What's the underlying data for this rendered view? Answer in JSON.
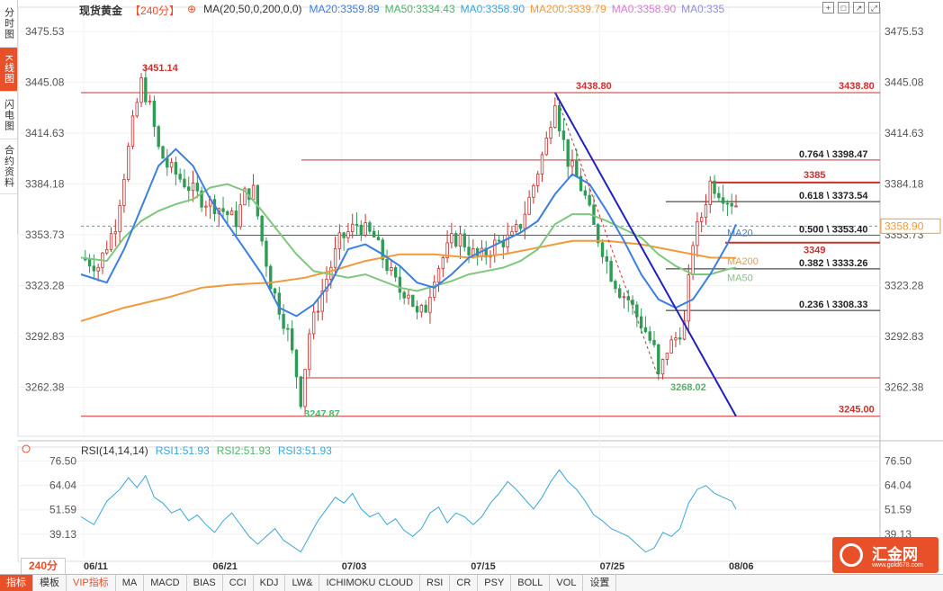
{
  "side_tabs": [
    "分时图",
    "K线图",
    "闪电图",
    "合约资料"
  ],
  "header": {
    "name": "现货黄金",
    "period": "【240分】",
    "ma_label": "MA(20,50,0,200,0,0)",
    "ma_values": [
      {
        "text": "MA20:3359.89",
        "color": "#3b7fe0"
      },
      {
        "text": "MA50:3334.43",
        "color": "#4fb36a"
      },
      {
        "text": "MA0:3358.90",
        "color": "#3aa5d8"
      },
      {
        "text": "MA200:3339.79",
        "color": "#f09a3a"
      },
      {
        "text": "MA0:3358.90",
        "color": "#d77ad6"
      },
      {
        "text": "MA0:335",
        "color": "#8e8ee0"
      }
    ]
  },
  "rsi_header": {
    "label": "RSI(14,14,14)",
    "rsi1": "RSI1:51.93",
    "rsi2": "RSI2:51.93",
    "rsi3": "RSI3:51.93"
  },
  "colors": {
    "up": "#c9312f",
    "down": "#2e9c55",
    "ma20": "#3b7fe0",
    "ma50": "#7fc77f",
    "ma200": "#f09a3a",
    "rsi": "#3aa5d8",
    "trend": "#1f1fbf",
    "level": "#c9312f"
  },
  "chart_data": {
    "type": "candlestick",
    "title": "现货黄金",
    "price_axis_ticks": [
      3475.53,
      3445.08,
      3414.63,
      3384.18,
      3353.73,
      3323.28,
      3292.83,
      3262.38
    ],
    "price_range": [
      3233.0,
      3490.0
    ],
    "date_ticks": [
      "06/11",
      "06/21",
      "07/03",
      "07/15",
      "07/25",
      "08/06"
    ],
    "current_price": "3358.90",
    "annotations": [
      {
        "text": "3451.14",
        "kind": "high"
      },
      {
        "text": "3438.80",
        "kind": "high"
      },
      {
        "text": "3247.87",
        "kind": "low"
      },
      {
        "text": "3268.02",
        "kind": "low"
      },
      {
        "text": "3438.80",
        "kind": "level"
      },
      {
        "text": "3245.00",
        "kind": "level"
      },
      {
        "text": "3385",
        "kind": "level"
      },
      {
        "text": "3349",
        "kind": "level"
      }
    ],
    "fibonacci": [
      {
        "label": "0.764 \\ 3398.47",
        "value": 3398.47
      },
      {
        "label": "0.618 \\ 3373.54",
        "value": 3373.54
      },
      {
        "label": "0.500 \\ 3353.40",
        "value": 3353.4
      },
      {
        "label": "0.382 \\ 3333.26",
        "value": 3333.26
      },
      {
        "label": "0.236 \\ 3308.33",
        "value": 3308.33
      }
    ],
    "ma_tags": [
      "MA20",
      "MA200",
      "MA50"
    ],
    "close_points": [
      [
        0,
        3340
      ],
      [
        4,
        3335
      ],
      [
        8,
        3360
      ],
      [
        12,
        3420
      ],
      [
        14,
        3445
      ],
      [
        16,
        3430
      ],
      [
        18,
        3405
      ],
      [
        20,
        3395
      ],
      [
        24,
        3385
      ],
      [
        28,
        3375
      ],
      [
        32,
        3370
      ],
      [
        36,
        3362
      ],
      [
        38,
        3378
      ],
      [
        40,
        3380
      ],
      [
        42,
        3350
      ],
      [
        44,
        3325
      ],
      [
        46,
        3310
      ],
      [
        48,
        3295
      ],
      [
        50,
        3270
      ],
      [
        51,
        3255
      ],
      [
        53,
        3295
      ],
      [
        56,
        3320
      ],
      [
        60,
        3350
      ],
      [
        64,
        3360
      ],
      [
        68,
        3352
      ],
      [
        70,
        3340
      ],
      [
        72,
        3330
      ],
      [
        74,
        3320
      ],
      [
        76,
        3320
      ],
      [
        78,
        3305
      ],
      [
        80,
        3310
      ],
      [
        82,
        3330
      ],
      [
        84,
        3340
      ],
      [
        86,
        3350
      ],
      [
        88,
        3352
      ],
      [
        90,
        3345
      ],
      [
        92,
        3340
      ],
      [
        94,
        3342
      ],
      [
        96,
        3348
      ],
      [
        98,
        3350
      ],
      [
        100,
        3352
      ],
      [
        102,
        3360
      ],
      [
        104,
        3375
      ],
      [
        106,
        3392
      ],
      [
        108,
        3410
      ],
      [
        110,
        3436
      ],
      [
        111,
        3420
      ],
      [
        113,
        3398
      ],
      [
        115,
        3388
      ],
      [
        117,
        3376
      ],
      [
        119,
        3358
      ],
      [
        121,
        3345
      ],
      [
        123,
        3330
      ],
      [
        125,
        3320
      ],
      [
        127,
        3315
      ],
      [
        129,
        3305
      ],
      [
        131,
        3296
      ],
      [
        133,
        3285
      ],
      [
        134,
        3268
      ],
      [
        136,
        3285
      ],
      [
        138,
        3292
      ],
      [
        140,
        3300
      ],
      [
        142,
        3350
      ],
      [
        144,
        3365
      ],
      [
        146,
        3385
      ],
      [
        148,
        3380
      ],
      [
        150,
        3375
      ],
      [
        152,
        3372
      ]
    ],
    "ma20": [
      [
        0,
        3330
      ],
      [
        6,
        3325
      ],
      [
        10,
        3345
      ],
      [
        14,
        3370
      ],
      [
        18,
        3395
      ],
      [
        22,
        3405
      ],
      [
        26,
        3395
      ],
      [
        30,
        3375
      ],
      [
        34,
        3360
      ],
      [
        38,
        3345
      ],
      [
        42,
        3330
      ],
      [
        46,
        3310
      ],
      [
        50,
        3305
      ],
      [
        54,
        3312
      ],
      [
        58,
        3325
      ],
      [
        62,
        3345
      ],
      [
        66,
        3348
      ],
      [
        70,
        3342
      ],
      [
        74,
        3335
      ],
      [
        78,
        3325
      ],
      [
        82,
        3322
      ],
      [
        86,
        3330
      ],
      [
        90,
        3340
      ],
      [
        94,
        3345
      ],
      [
        98,
        3350
      ],
      [
        102,
        3355
      ],
      [
        106,
        3362
      ],
      [
        110,
        3378
      ],
      [
        114,
        3390
      ],
      [
        118,
        3384
      ],
      [
        122,
        3368
      ],
      [
        126,
        3350
      ],
      [
        130,
        3330
      ],
      [
        134,
        3315
      ],
      [
        138,
        3310
      ],
      [
        142,
        3315
      ],
      [
        146,
        3330
      ],
      [
        150,
        3348
      ],
      [
        152,
        3360
      ]
    ],
    "ma50": [
      [
        0,
        3340
      ],
      [
        6,
        3338
      ],
      [
        10,
        3352
      ],
      [
        14,
        3362
      ],
      [
        18,
        3368
      ],
      [
        22,
        3372
      ],
      [
        26,
        3375
      ],
      [
        30,
        3382
      ],
      [
        34,
        3384
      ],
      [
        38,
        3380
      ],
      [
        42,
        3368
      ],
      [
        46,
        3355
      ],
      [
        50,
        3342
      ],
      [
        54,
        3332
      ],
      [
        58,
        3330
      ],
      [
        62,
        3328
      ],
      [
        66,
        3330
      ],
      [
        70,
        3326
      ],
      [
        74,
        3322
      ],
      [
        78,
        3320
      ],
      [
        82,
        3323
      ],
      [
        86,
        3326
      ],
      [
        90,
        3330
      ],
      [
        94,
        3332
      ],
      [
        98,
        3334
      ],
      [
        102,
        3338
      ],
      [
        106,
        3345
      ],
      [
        110,
        3360
      ],
      [
        114,
        3366
      ],
      [
        118,
        3366
      ],
      [
        122,
        3362
      ],
      [
        126,
        3357
      ],
      [
        130,
        3352
      ],
      [
        134,
        3342
      ],
      [
        138,
        3335
      ],
      [
        142,
        3330
      ],
      [
        146,
        3330
      ],
      [
        150,
        3333
      ],
      [
        152,
        3334
      ]
    ],
    "ma200": [
      [
        0,
        3302
      ],
      [
        10,
        3310
      ],
      [
        20,
        3316
      ],
      [
        28,
        3322
      ],
      [
        36,
        3324
      ],
      [
        44,
        3325
      ],
      [
        52,
        3328
      ],
      [
        58,
        3332
      ],
      [
        66,
        3338
      ],
      [
        74,
        3342
      ],
      [
        82,
        3342
      ],
      [
        90,
        3340
      ],
      [
        98,
        3342
      ],
      [
        106,
        3346
      ],
      [
        114,
        3350
      ],
      [
        122,
        3350
      ],
      [
        130,
        3348
      ],
      [
        138,
        3344
      ],
      [
        146,
        3340
      ],
      [
        152,
        3339.79
      ]
    ],
    "rsi_axis_ticks": [
      76.5,
      64.04,
      51.59,
      39.13
    ],
    "rsi_range": [
      28.0,
      80.0
    ],
    "rsi": [
      [
        0,
        48
      ],
      [
        3,
        44
      ],
      [
        6,
        56
      ],
      [
        9,
        62
      ],
      [
        11,
        68
      ],
      [
        13,
        63
      ],
      [
        15,
        69
      ],
      [
        17,
        58
      ],
      [
        19,
        55
      ],
      [
        21,
        50
      ],
      [
        23,
        52
      ],
      [
        25,
        46
      ],
      [
        27,
        49
      ],
      [
        29,
        44
      ],
      [
        31,
        40
      ],
      [
        33,
        46
      ],
      [
        35,
        50
      ],
      [
        37,
        44
      ],
      [
        39,
        38
      ],
      [
        41,
        34
      ],
      [
        43,
        38
      ],
      [
        45,
        42
      ],
      [
        47,
        36
      ],
      [
        49,
        33
      ],
      [
        51,
        30
      ],
      [
        53,
        38
      ],
      [
        55,
        46
      ],
      [
        57,
        52
      ],
      [
        59,
        58
      ],
      [
        61,
        55
      ],
      [
        63,
        60
      ],
      [
        65,
        52
      ],
      [
        67,
        48
      ],
      [
        69,
        50
      ],
      [
        71,
        44
      ],
      [
        73,
        47
      ],
      [
        75,
        41
      ],
      [
        77,
        38
      ],
      [
        79,
        42
      ],
      [
        81,
        50
      ],
      [
        83,
        53
      ],
      [
        85,
        45
      ],
      [
        87,
        50
      ],
      [
        89,
        48
      ],
      [
        91,
        44
      ],
      [
        93,
        48
      ],
      [
        95,
        55
      ],
      [
        97,
        60
      ],
      [
        99,
        66
      ],
      [
        101,
        62
      ],
      [
        103,
        57
      ],
      [
        105,
        52
      ],
      [
        107,
        58
      ],
      [
        109,
        66
      ],
      [
        111,
        72
      ],
      [
        113,
        66
      ],
      [
        115,
        62
      ],
      [
        117,
        56
      ],
      [
        119,
        49
      ],
      [
        121,
        46
      ],
      [
        123,
        42
      ],
      [
        125,
        40
      ],
      [
        127,
        38
      ],
      [
        129,
        34
      ],
      [
        131,
        30
      ],
      [
        133,
        32
      ],
      [
        135,
        40
      ],
      [
        137,
        38
      ],
      [
        139,
        42
      ],
      [
        141,
        55
      ],
      [
        143,
        62
      ],
      [
        145,
        64
      ],
      [
        147,
        60
      ],
      [
        149,
        58
      ],
      [
        151,
        56
      ],
      [
        152,
        51.93
      ]
    ],
    "x_range": [
      0,
      152
    ]
  },
  "period_select": "240分",
  "bottom_tabs": [
    "指标",
    "模板",
    "VIP指标",
    "MA",
    "MACD",
    "BIAS",
    "CCI",
    "KDJ",
    "LW&",
    "ICHIMOKU CLOUD",
    "RSI",
    "CR",
    "PSY",
    "BOLL",
    "VOL",
    "设置"
  ],
  "logo": {
    "name": "汇金网",
    "url": "www.gold678.com"
  }
}
